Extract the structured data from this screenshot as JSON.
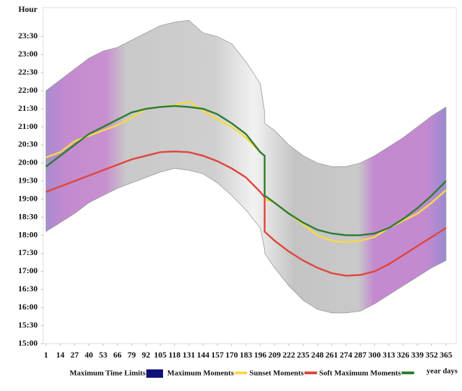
{
  "chart_data": {
    "type": "band-line",
    "y_label": "Hour",
    "x_label": "year days",
    "x": [
      1,
      14,
      27,
      40,
      53,
      66,
      79,
      92,
      105,
      118,
      131,
      144,
      157,
      170,
      183,
      196,
      200,
      200,
      209,
      222,
      235,
      248,
      261,
      274,
      287,
      300,
      313,
      326,
      339,
      352,
      365
    ],
    "xlim": [
      -1.5,
      374.5
    ],
    "xticks": [
      1,
      14,
      27,
      40,
      53,
      66,
      79,
      92,
      105,
      118,
      131,
      144,
      157,
      170,
      183,
      196,
      209,
      222,
      235,
      248,
      261,
      274,
      287,
      300,
      313,
      326,
      339,
      352,
      365
    ],
    "ylim": [
      15,
      24.3
    ],
    "yticks": [
      {
        "value": 15,
        "label": "15:00"
      },
      {
        "value": 15.5,
        "label": "15:30"
      },
      {
        "value": 16,
        "label": "16:00"
      },
      {
        "value": 16.5,
        "label": "16:30"
      },
      {
        "value": 17,
        "label": "17:00"
      },
      {
        "value": 17.5,
        "label": "17:30"
      },
      {
        "value": 18,
        "label": "18:00"
      },
      {
        "value": 18.5,
        "label": "18:30"
      },
      {
        "value": 19,
        "label": "19:00"
      },
      {
        "value": 19.5,
        "label": "19:30"
      },
      {
        "value": 20,
        "label": "20:00"
      },
      {
        "value": 20.5,
        "label": "20:30"
      },
      {
        "value": 21,
        "label": "21:00"
      },
      {
        "value": 21.5,
        "label": "21:30"
      },
      {
        "value": 22,
        "label": "22:00"
      },
      {
        "value": 22.5,
        "label": "22:30"
      },
      {
        "value": 23,
        "label": "23:00"
      },
      {
        "value": 23.5,
        "label": "23:30"
      }
    ],
    "series": [
      {
        "name": "Maximum Time Limits",
        "color": "#10107a",
        "kind": "band",
        "values": [
          22.0,
          22.3,
          22.6,
          22.9,
          23.1,
          23.2,
          23.4,
          23.6,
          23.8,
          23.9,
          23.95,
          23.6,
          23.5,
          23.3,
          22.8,
          22.2,
          21.4,
          21.1,
          20.9,
          20.5,
          20.2,
          20.0,
          19.9,
          19.9,
          20.0,
          20.2,
          20.45,
          20.7,
          21.0,
          21.3,
          21.55
        ],
        "low": [
          18.1,
          18.35,
          18.6,
          18.9,
          19.1,
          19.3,
          19.45,
          19.6,
          19.75,
          19.85,
          19.8,
          19.7,
          19.45,
          19.1,
          18.7,
          18.2,
          17.6,
          17.5,
          17.1,
          16.6,
          16.2,
          15.95,
          15.85,
          15.85,
          15.9,
          16.1,
          16.35,
          16.6,
          16.85,
          17.1,
          17.3
        ]
      },
      {
        "name": "Maximum Moments",
        "color": "#f5d84a",
        "kind": "line",
        "values": [
          20.15,
          20.3,
          20.6,
          20.75,
          20.9,
          21.05,
          21.25,
          21.5,
          21.55,
          21.6,
          21.7,
          21.45,
          21.2,
          21.0,
          20.7,
          20.3,
          20.2,
          19.0,
          18.9,
          18.6,
          18.3,
          18.0,
          17.85,
          17.8,
          17.85,
          17.95,
          18.2,
          18.4,
          18.6,
          18.9,
          19.25
        ]
      },
      {
        "name": "Sunset Moments",
        "color": "#e0463c",
        "kind": "line",
        "values": [
          19.2,
          19.35,
          19.5,
          19.65,
          19.8,
          19.95,
          20.1,
          20.2,
          20.3,
          20.32,
          20.3,
          20.2,
          20.05,
          19.85,
          19.6,
          19.2,
          19.05,
          18.1,
          17.85,
          17.55,
          17.3,
          17.1,
          16.95,
          16.88,
          16.9,
          17.0,
          17.2,
          17.45,
          17.7,
          17.95,
          18.2
        ]
      },
      {
        "name": "Soft Maximum Moments",
        "color": "#2e7d32",
        "kind": "line",
        "values": [
          19.9,
          20.2,
          20.5,
          20.8,
          21.0,
          21.2,
          21.4,
          21.5,
          21.55,
          21.58,
          21.55,
          21.5,
          21.35,
          21.1,
          20.8,
          20.3,
          20.2,
          19.1,
          18.9,
          18.6,
          18.35,
          18.15,
          18.05,
          18.0,
          18.0,
          18.05,
          18.2,
          18.45,
          18.75,
          19.1,
          19.5
        ]
      }
    ]
  }
}
